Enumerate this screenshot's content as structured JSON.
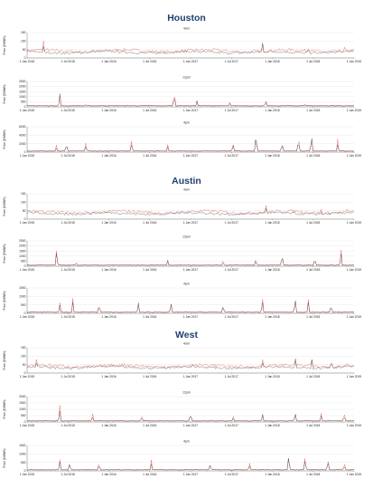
{
  "chart_data": [
    {
      "type": "line",
      "region": "Houston",
      "panels": [
        {
          "title": "4am",
          "ylabel": "Price ($/MWh)",
          "yticks": [
            "0",
            "50",
            "100",
            "150"
          ],
          "ylim": [
            0,
            150
          ],
          "spikes": [
            [
              0.05,
              0.8
            ],
            [
              0.2,
              0.5
            ],
            [
              0.45,
              0.45
            ],
            [
              0.72,
              1.0
            ],
            [
              0.86,
              0.6
            ],
            [
              0.97,
              0.7
            ]
          ]
        },
        {
          "title": "12pm",
          "ylabel": "Price ($/MWh)",
          "yticks": [
            "0",
            "500",
            "1000",
            "1500",
            "2000",
            "2500"
          ],
          "ylim": [
            0,
            2500
          ],
          "spikes": [
            [
              0.1,
              0.75
            ],
            [
              0.18,
              0.15
            ],
            [
              0.45,
              0.85
            ],
            [
              0.52,
              0.3
            ],
            [
              0.62,
              0.2
            ],
            [
              0.73,
              0.35
            ],
            [
              0.85,
              0.15
            ]
          ]
        },
        {
          "title": "4pm",
          "ylabel": "Price ($/MWh)",
          "yticks": [
            "0",
            "2000",
            "4000",
            "6000"
          ],
          "ylim": [
            0,
            6000
          ],
          "spikes": [
            [
              0.09,
              0.35
            ],
            [
              0.12,
              0.5
            ],
            [
              0.18,
              0.45
            ],
            [
              0.32,
              0.6
            ],
            [
              0.43,
              0.4
            ],
            [
              0.63,
              0.5
            ],
            [
              0.7,
              1.0
            ],
            [
              0.78,
              0.5
            ],
            [
              0.83,
              0.8
            ],
            [
              0.87,
              0.9
            ],
            [
              0.95,
              0.6
            ]
          ]
        }
      ]
    },
    {
      "type": "line",
      "region": "Austin",
      "panels": [
        {
          "title": "4am",
          "ylabel": "Price ($/MWh)",
          "yticks": [
            "0",
            "50",
            "100",
            "150"
          ],
          "ylim": [
            0,
            150
          ],
          "spikes": [
            [
              0.02,
              0.7
            ],
            [
              0.17,
              0.4
            ],
            [
              0.44,
              0.35
            ],
            [
              0.73,
              0.9
            ],
            [
              0.9,
              0.5
            ],
            [
              0.98,
              0.7
            ]
          ]
        },
        {
          "title": "12pm",
          "ylabel": "Price ($/MWh)",
          "yticks": [
            "0",
            "500",
            "1000",
            "1500",
            "2000",
            "2500"
          ],
          "ylim": [
            0,
            2500
          ],
          "spikes": [
            [
              0.09,
              0.9
            ],
            [
              0.15,
              0.2
            ],
            [
              0.43,
              0.4
            ],
            [
              0.6,
              0.3
            ],
            [
              0.7,
              0.35
            ],
            [
              0.78,
              0.6
            ],
            [
              0.88,
              0.4
            ],
            [
              0.96,
              0.8
            ]
          ]
        },
        {
          "title": "4pm",
          "ylabel": "Price ($/MWh)",
          "yticks": [
            "0",
            "500",
            "1000",
            "1500"
          ],
          "ylim": [
            0,
            1500
          ],
          "spikes": [
            [
              0.1,
              0.5
            ],
            [
              0.14,
              0.7
            ],
            [
              0.22,
              0.5
            ],
            [
              0.34,
              0.6
            ],
            [
              0.44,
              0.55
            ],
            [
              0.6,
              0.5
            ],
            [
              0.72,
              0.9
            ],
            [
              0.82,
              0.95
            ],
            [
              0.86,
              0.8
            ],
            [
              0.93,
              0.5
            ]
          ]
        }
      ]
    },
    {
      "type": "line",
      "region": "West",
      "panels": [
        {
          "title": "4am",
          "ylabel": "Price ($/MWh)",
          "yticks": [
            "0",
            "50",
            "100",
            "150"
          ],
          "ylim": [
            0,
            150
          ],
          "spikes": [
            [
              0.03,
              0.9
            ],
            [
              0.22,
              0.5
            ],
            [
              0.42,
              0.4
            ],
            [
              0.6,
              0.5
            ],
            [
              0.72,
              0.7
            ],
            [
              0.82,
              0.9
            ],
            [
              0.87,
              0.95
            ],
            [
              0.93,
              0.9
            ],
            [
              0.98,
              0.8
            ]
          ]
        },
        {
          "title": "12pm",
          "ylabel": "Price ($/MWh)",
          "yticks": [
            "0",
            "500",
            "1000",
            "1500",
            "2000"
          ],
          "ylim": [
            0,
            2000
          ],
          "spikes": [
            [
              0.1,
              0.9
            ],
            [
              0.2,
              0.4
            ],
            [
              0.35,
              0.3
            ],
            [
              0.5,
              0.5
            ],
            [
              0.63,
              0.3
            ],
            [
              0.72,
              0.45
            ],
            [
              0.82,
              0.5
            ],
            [
              0.9,
              0.4
            ],
            [
              0.97,
              0.45
            ]
          ]
        },
        {
          "title": "4pm",
          "ylabel": "Price ($/MWh)",
          "yticks": [
            "0",
            "500",
            "1000",
            "1500"
          ],
          "ylim": [
            0,
            1500
          ],
          "spikes": [
            [
              0.1,
              0.6
            ],
            [
              0.13,
              0.5
            ],
            [
              0.22,
              0.4
            ],
            [
              0.38,
              0.5
            ],
            [
              0.56,
              0.4
            ],
            [
              0.68,
              0.45
            ],
            [
              0.8,
              0.95
            ],
            [
              0.85,
              0.85
            ],
            [
              0.92,
              0.6
            ],
            [
              0.97,
              0.4
            ]
          ]
        }
      ]
    }
  ],
  "x_ticks": [
    "1 Jan 2015",
    "1 Jul 2015",
    "1 Jan 2016",
    "1 Jul 2016",
    "1 Jan 2017",
    "1 Jul 2017",
    "1 Jan 2018",
    "1 Jul 2018",
    "1 Jan 2019"
  ],
  "colors": {
    "series_dark": "#1a1a1a",
    "series_red": "#e23b3b",
    "grid": "#dddddd",
    "axis": "#555555",
    "title": "#1f3f6e"
  }
}
